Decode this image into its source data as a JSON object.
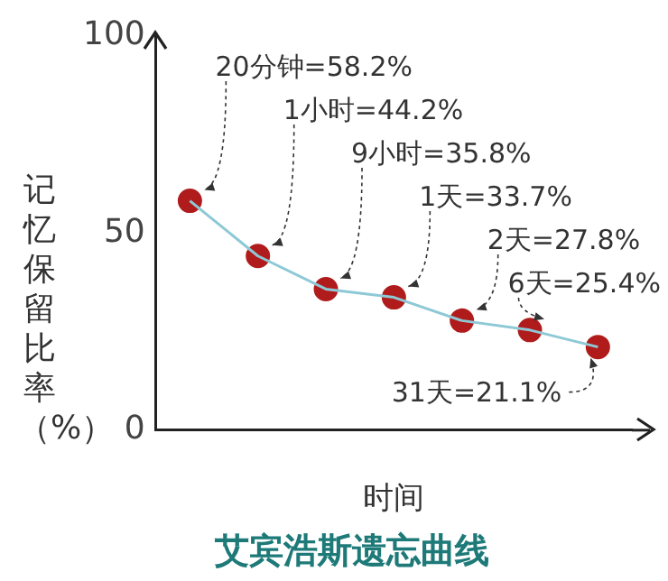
{
  "chart_data": {
    "type": "line",
    "title": "艾宾浩斯遗忘曲线",
    "xlabel": "时间",
    "ylabel": "记忆保留比率（%）",
    "categories": [
      null,
      null,
      null,
      null,
      null,
      null,
      null
    ],
    "series": [
      {
        "color": "#8ec9d6",
        "marker": "none",
        "values": [
          58.2,
          44.2,
          35.8,
          33.7,
          27.8,
          25.4,
          21.1
        ]
      },
      {
        "type": "scatter",
        "color": "#b01c1c",
        "marker": "circle",
        "values": [
          58.2,
          44.2,
          35.8,
          33.7,
          27.8,
          25.4,
          21.1
        ],
        "value_labels": [
          "20分钟=58.2%",
          "1小时=44.2%",
          "9小时=35.8%",
          "1天=33.7%",
          "2天=27.8%",
          "6天=25.4%",
          "31天=21.1%"
        ]
      }
    ],
    "ylim": [
      0,
      100
    ],
    "yticks": [
      0,
      50,
      100
    ],
    "grid": false,
    "legend": false,
    "line_style": "solid"
  }
}
